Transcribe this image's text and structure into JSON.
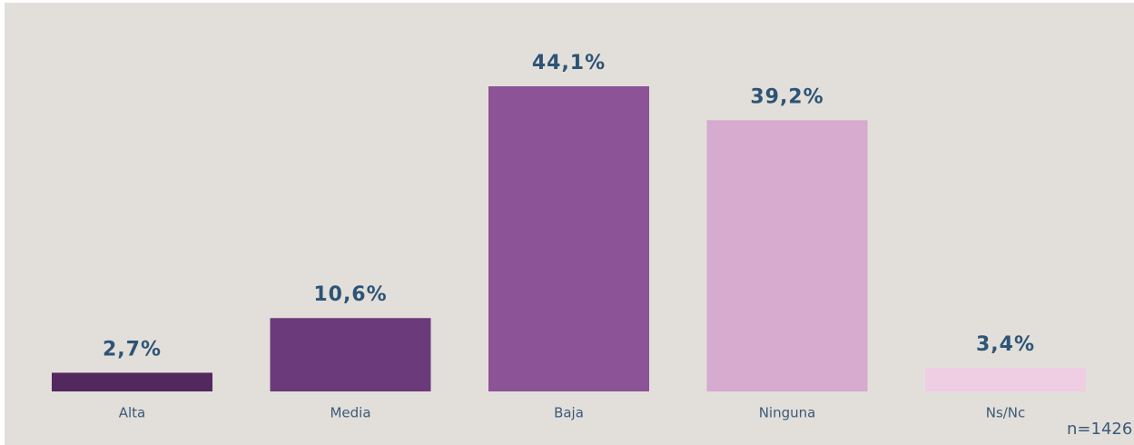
{
  "chart_data": {
    "type": "bar",
    "categories": [
      "Alta",
      "Media",
      "Baja",
      "Ninguna",
      "Ns/Nc"
    ],
    "values": [
      2.7,
      10.6,
      44.1,
      39.2,
      3.4
    ],
    "value_labels": [
      "2,7%",
      "10,6%",
      "44,1%",
      "39,2%",
      "3,4%"
    ],
    "colors": [
      "#52285e",
      "#6b3a7a",
      "#8c5396",
      "#d7aacf",
      "#efcde3"
    ],
    "annotation": "n=1426"
  }
}
